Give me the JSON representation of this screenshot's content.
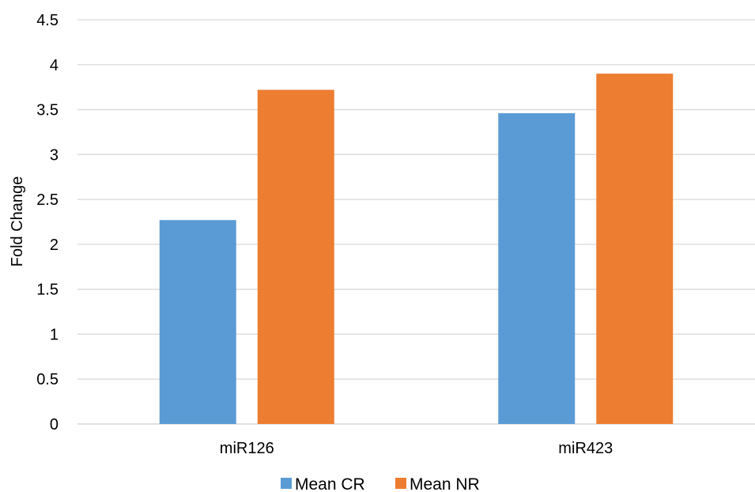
{
  "chart_data": {
    "type": "bar",
    "title": "",
    "xlabel": "",
    "ylabel": "Fold Change",
    "categories": [
      "miR126",
      "miR423"
    ],
    "series": [
      {
        "name": "Mean CR",
        "color": "#5B9BD5",
        "values": [
          2.27,
          3.46
        ]
      },
      {
        "name": "Mean NR",
        "color": "#ED7D31",
        "values": [
          3.72,
          3.9
        ]
      }
    ],
    "ylim": [
      0,
      4.5
    ],
    "yticks": [
      "0",
      "0.5",
      "1",
      "1.5",
      "2",
      "2.5",
      "3",
      "3.5",
      "4",
      "4.5"
    ],
    "grid": true,
    "gridline_color": "#D9D9D9",
    "legend_position": "bottom"
  }
}
